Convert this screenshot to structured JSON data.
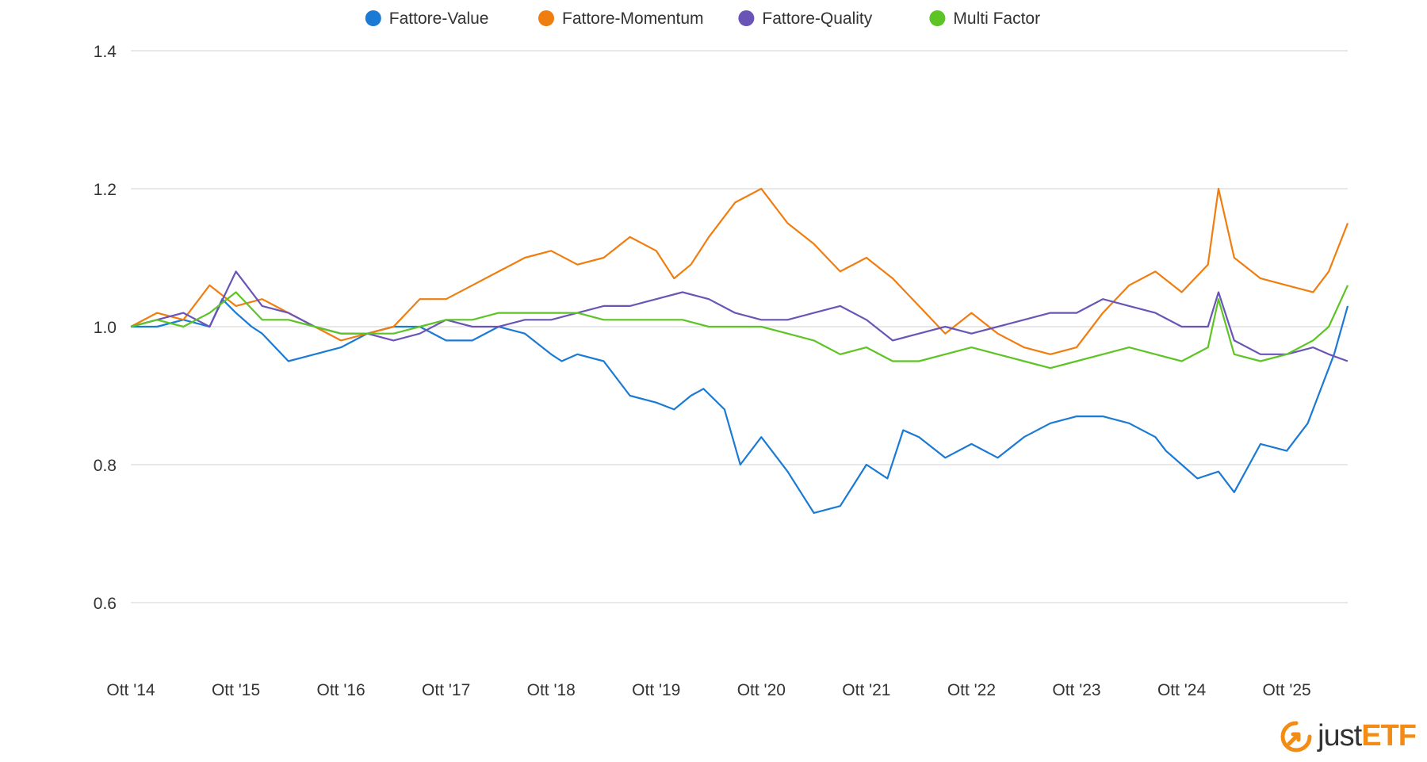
{
  "chart_data": {
    "type": "line",
    "title": "",
    "xlabel": "",
    "ylabel": "",
    "ylim": [
      0.6,
      1.4
    ],
    "y_ticks": [
      "1.4",
      "1.2",
      "1.0",
      "0.8",
      "0.6"
    ],
    "y_tick_values": [
      1.4,
      1.2,
      1.0,
      0.8,
      0.6
    ],
    "x_ticks": [
      "Ott '14",
      "Ott '15",
      "Ott '16",
      "Ott '17",
      "Ott '18",
      "Ott '19",
      "Ott '20",
      "Ott '21",
      "Ott '22",
      "Ott '23",
      "Ott '24",
      "Ott '25"
    ],
    "x_tick_values": [
      2014.75,
      2015.75,
      2016.75,
      2017.75,
      2018.75,
      2019.75,
      2020.75,
      2021.75,
      2022.75,
      2023.75,
      2024.75,
      2025.75
    ],
    "xlim": [
      2014.75,
      2026.33
    ],
    "grid": true,
    "legend_position": "top-center",
    "series": [
      {
        "name": "Fattore-Value",
        "color": "#1b7ad3",
        "x": [
          2014.75,
          2015.0,
          2015.25,
          2015.5,
          2015.62,
          2015.75,
          2015.9,
          2016.0,
          2016.25,
          2016.5,
          2016.75,
          2017.0,
          2017.25,
          2017.5,
          2017.75,
          2018.0,
          2018.25,
          2018.5,
          2018.75,
          2018.85,
          2019.0,
          2019.25,
          2019.5,
          2019.75,
          2019.92,
          2020.08,
          2020.2,
          2020.4,
          2020.55,
          2020.75,
          2020.85,
          2021.0,
          2021.25,
          2021.5,
          2021.75,
          2021.95,
          2022.1,
          2022.25,
          2022.5,
          2022.75,
          2023.0,
          2023.25,
          2023.5,
          2023.75,
          2024.0,
          2024.25,
          2024.5,
          2024.6,
          2024.75,
          2024.9,
          2025.1,
          2025.25,
          2025.5,
          2025.75,
          2025.95,
          2026.1,
          2026.2,
          2026.33
        ],
        "y": [
          1.0,
          1.0,
          1.01,
          1.0,
          1.04,
          1.02,
          1.0,
          0.99,
          0.95,
          0.96,
          0.97,
          0.99,
          1.0,
          1.0,
          0.98,
          0.98,
          1.0,
          0.99,
          0.96,
          0.95,
          0.96,
          0.95,
          0.9,
          0.89,
          0.88,
          0.9,
          0.91,
          0.88,
          0.8,
          0.84,
          0.82,
          0.79,
          0.73,
          0.74,
          0.8,
          0.78,
          0.85,
          0.84,
          0.81,
          0.83,
          0.81,
          0.84,
          0.86,
          0.87,
          0.87,
          0.86,
          0.84,
          0.82,
          0.8,
          0.78,
          0.79,
          0.76,
          0.83,
          0.82,
          0.86,
          0.92,
          0.96,
          1.03
        ]
      },
      {
        "name": "Fattore-Momentum",
        "color": "#f07d0f",
        "x": [
          2014.75,
          2015.0,
          2015.25,
          2015.5,
          2015.75,
          2016.0,
          2016.25,
          2016.5,
          2016.75,
          2017.0,
          2017.25,
          2017.5,
          2017.75,
          2018.0,
          2018.25,
          2018.5,
          2018.75,
          2019.0,
          2019.25,
          2019.5,
          2019.75,
          2019.92,
          2020.08,
          2020.25,
          2020.5,
          2020.75,
          2021.0,
          2021.25,
          2021.5,
          2021.75,
          2022.0,
          2022.25,
          2022.5,
          2022.75,
          2023.0,
          2023.25,
          2023.5,
          2023.75,
          2024.0,
          2024.25,
          2024.5,
          2024.75,
          2025.0,
          2025.1,
          2025.25,
          2025.5,
          2025.75,
          2026.0,
          2026.15,
          2026.33
        ],
        "y": [
          1.0,
          1.02,
          1.01,
          1.06,
          1.03,
          1.04,
          1.02,
          1.0,
          0.98,
          0.99,
          1.0,
          1.04,
          1.04,
          1.06,
          1.08,
          1.1,
          1.11,
          1.09,
          1.1,
          1.13,
          1.11,
          1.07,
          1.09,
          1.13,
          1.18,
          1.2,
          1.15,
          1.12,
          1.08,
          1.1,
          1.07,
          1.03,
          0.99,
          1.02,
          0.99,
          0.97,
          0.96,
          0.97,
          1.02,
          1.06,
          1.08,
          1.05,
          1.09,
          1.2,
          1.1,
          1.07,
          1.06,
          1.05,
          1.08,
          1.15
        ]
      },
      {
        "name": "Fattore-Quality",
        "color": "#6a55b6",
        "x": [
          2014.75,
          2015.0,
          2015.25,
          2015.5,
          2015.75,
          2016.0,
          2016.25,
          2016.5,
          2016.75,
          2017.0,
          2017.25,
          2017.5,
          2017.75,
          2018.0,
          2018.25,
          2018.5,
          2018.75,
          2019.0,
          2019.25,
          2019.5,
          2019.75,
          2020.0,
          2020.25,
          2020.5,
          2020.75,
          2021.0,
          2021.25,
          2021.5,
          2021.75,
          2022.0,
          2022.25,
          2022.5,
          2022.75,
          2023.0,
          2023.25,
          2023.5,
          2023.75,
          2024.0,
          2024.25,
          2024.5,
          2024.75,
          2025.0,
          2025.1,
          2025.25,
          2025.5,
          2025.75,
          2026.0,
          2026.15,
          2026.33
        ],
        "y": [
          1.0,
          1.01,
          1.02,
          1.0,
          1.08,
          1.03,
          1.02,
          1.0,
          0.99,
          0.99,
          0.98,
          0.99,
          1.01,
          1.0,
          1.0,
          1.01,
          1.01,
          1.02,
          1.03,
          1.03,
          1.04,
          1.05,
          1.04,
          1.02,
          1.01,
          1.01,
          1.02,
          1.03,
          1.01,
          0.98,
          0.99,
          1.0,
          0.99,
          1.0,
          1.01,
          1.02,
          1.02,
          1.04,
          1.03,
          1.02,
          1.0,
          1.0,
          1.05,
          0.98,
          0.96,
          0.96,
          0.97,
          0.96,
          0.95
        ]
      },
      {
        "name": "Multi Factor",
        "color": "#5dc425",
        "x": [
          2014.75,
          2015.0,
          2015.25,
          2015.5,
          2015.75,
          2016.0,
          2016.25,
          2016.5,
          2016.75,
          2017.0,
          2017.25,
          2017.5,
          2017.75,
          2018.0,
          2018.25,
          2018.5,
          2018.75,
          2019.0,
          2019.25,
          2019.5,
          2019.75,
          2020.0,
          2020.25,
          2020.5,
          2020.75,
          2021.0,
          2021.25,
          2021.5,
          2021.75,
          2022.0,
          2022.25,
          2022.5,
          2022.75,
          2023.0,
          2023.25,
          2023.5,
          2023.75,
          2024.0,
          2024.25,
          2024.5,
          2024.75,
          2025.0,
          2025.1,
          2025.25,
          2025.5,
          2025.75,
          2026.0,
          2026.15,
          2026.33
        ],
        "y": [
          1.0,
          1.01,
          1.0,
          1.02,
          1.05,
          1.01,
          1.01,
          1.0,
          0.99,
          0.99,
          0.99,
          1.0,
          1.01,
          1.01,
          1.02,
          1.02,
          1.02,
          1.02,
          1.01,
          1.01,
          1.01,
          1.01,
          1.0,
          1.0,
          1.0,
          0.99,
          0.98,
          0.96,
          0.97,
          0.95,
          0.95,
          0.96,
          0.97,
          0.96,
          0.95,
          0.94,
          0.95,
          0.96,
          0.97,
          0.96,
          0.95,
          0.97,
          1.04,
          0.96,
          0.95,
          0.96,
          0.98,
          1.0,
          1.06
        ]
      }
    ]
  },
  "logo": {
    "just": "just",
    "etf": "ETF"
  }
}
